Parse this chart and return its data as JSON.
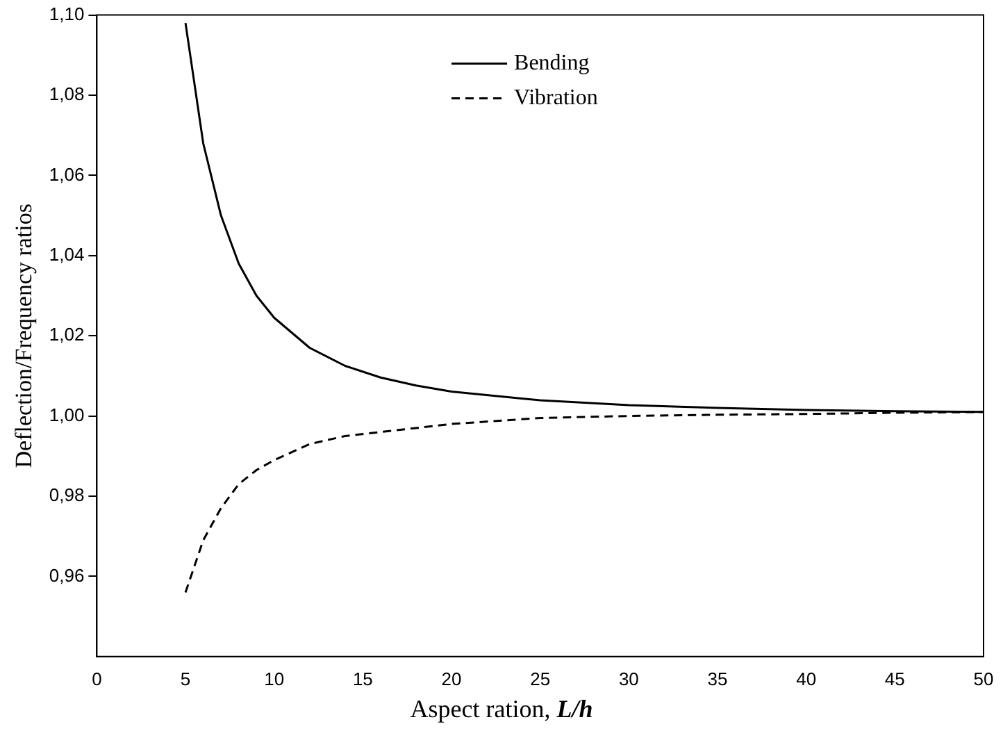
{
  "chart_data": {
    "type": "line",
    "xlabel": "Aspect ration, L/h",
    "ylabel": "Deflection/Frequency ratios",
    "xlim": [
      0,
      50
    ],
    "xticks": [
      0,
      5,
      10,
      15,
      20,
      25,
      30,
      35,
      40,
      45,
      50
    ],
    "ylim": [
      0.94,
      1.1
    ],
    "yticks": [
      {
        "value": 0.96,
        "label": "0,96"
      },
      {
        "value": 0.98,
        "label": "0,98"
      },
      {
        "value": 1.0,
        "label": "1,00"
      },
      {
        "value": 1.02,
        "label": "1,02"
      },
      {
        "value": 1.04,
        "label": "1,04"
      },
      {
        "value": 1.06,
        "label": "1,06"
      },
      {
        "value": 1.08,
        "label": "1,08"
      },
      {
        "value": 1.1,
        "label": "1,10"
      }
    ],
    "x": [
      5,
      6,
      7,
      8,
      9,
      10,
      12,
      14,
      16,
      18,
      20,
      25,
      30,
      35,
      40,
      45,
      50
    ],
    "grid": false,
    "legend": "top",
    "marker": "none",
    "series": [
      {
        "name": "Bending",
        "color": "#000000",
        "line_style": "solid",
        "values": [
          1.098,
          1.068,
          1.05,
          1.038,
          1.03,
          1.0245,
          1.017,
          1.0125,
          1.0096,
          1.0076,
          1.0061,
          1.0039,
          1.0027,
          1.002,
          1.0015,
          1.0012,
          1.001
        ]
      },
      {
        "name": "Vibration",
        "color": "#000000",
        "line_style": "dashed",
        "values": [
          0.956,
          0.969,
          0.977,
          0.983,
          0.9865,
          0.989,
          0.993,
          0.995,
          0.996,
          0.997,
          0.998,
          0.9995,
          1.0,
          1.0003,
          1.0005,
          1.0008,
          1.001
        ]
      }
    ]
  }
}
